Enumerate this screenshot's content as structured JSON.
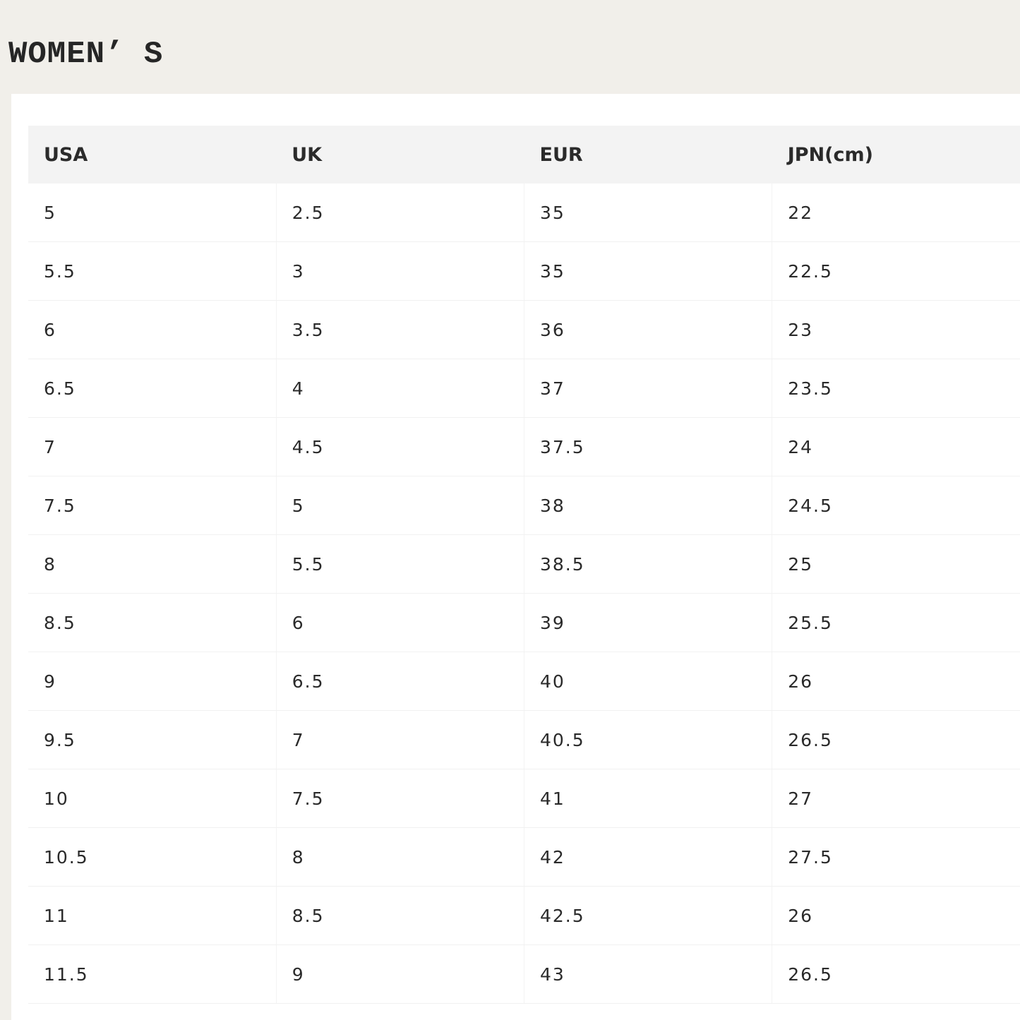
{
  "title": "WOMEN’ S",
  "table": {
    "headers": [
      "USA",
      "UK",
      "EUR",
      "JPN(cm)"
    ],
    "rows": [
      [
        "5",
        "2.5",
        "35",
        "22"
      ],
      [
        "5.5",
        "3",
        "35",
        "22.5"
      ],
      [
        "6",
        "3.5",
        "36",
        "23"
      ],
      [
        "6.5",
        "4",
        "37",
        "23.5"
      ],
      [
        "7",
        "4.5",
        "37.5",
        "24"
      ],
      [
        "7.5",
        "5",
        "38",
        "24.5"
      ],
      [
        "8",
        "5.5",
        "38.5",
        "25"
      ],
      [
        "8.5",
        "6",
        "39",
        "25.5"
      ],
      [
        "9",
        "6.5",
        "40",
        "26"
      ],
      [
        "9.5",
        "7",
        "40.5",
        "26.5"
      ],
      [
        "10",
        "7.5",
        "41",
        "27"
      ],
      [
        "10.5",
        "8",
        "42",
        "27.5"
      ],
      [
        "11",
        "8.5",
        "42.5",
        "26"
      ],
      [
        "11.5",
        "9",
        "43",
        "26.5"
      ]
    ]
  }
}
